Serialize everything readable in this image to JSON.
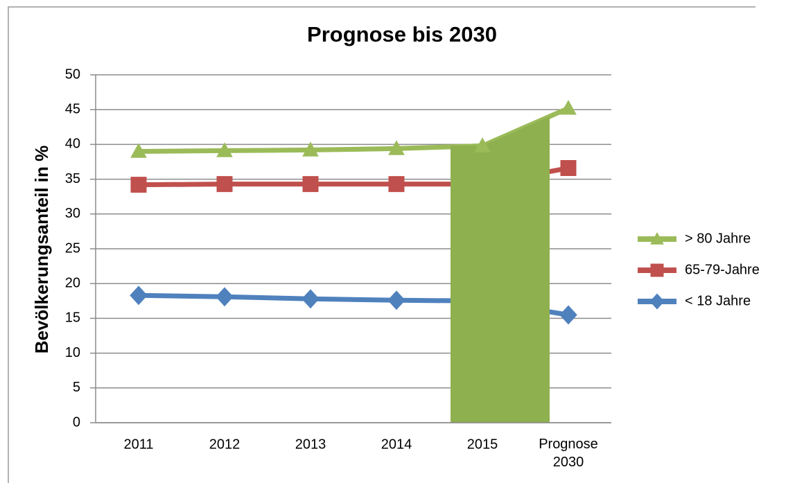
{
  "chart_data": {
    "type": "line",
    "title": "Prognose bis 2030",
    "y_label": "Bevölkerungsanteil in %",
    "categories": [
      "2011",
      "2012",
      "2013",
      "2014",
      "2015",
      "Prognose 2030"
    ],
    "series": [
      {
        "name": "> 80 Jahre",
        "color": "#9bbb59",
        "marker": "triangle",
        "values": [
          39.0,
          39.1,
          39.2,
          39.4,
          39.8,
          45.2
        ]
      },
      {
        "name": "65-79-Jahre",
        "color": "#c0504d",
        "marker": "square",
        "values": [
          34.2,
          34.3,
          34.3,
          34.3,
          34.3,
          36.6
        ]
      },
      {
        "name": "< 18 Jahre",
        "color": "#4f81bd",
        "marker": "diamond",
        "values": [
          18.3,
          18.1,
          17.8,
          17.6,
          17.5,
          15.5
        ]
      }
    ],
    "ylim": [
      0,
      50
    ],
    "yticks": [
      0,
      5,
      10,
      15,
      20,
      25,
      30,
      35,
      40,
      45,
      50
    ],
    "grid": true,
    "legend": "right"
  }
}
